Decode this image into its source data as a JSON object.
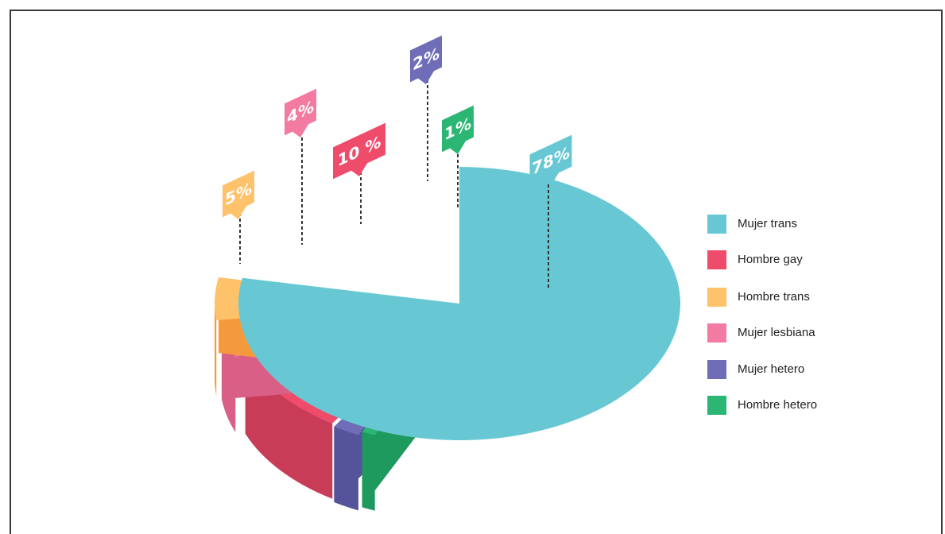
{
  "chart_data": {
    "type": "pie",
    "categories": [
      "Mujer trans",
      "Hombre gay",
      "Hombre trans",
      "Mujer lesbiana",
      "Mujer hetero",
      "Hombre hetero"
    ],
    "values": [
      78,
      10,
      5,
      4,
      2,
      1
    ],
    "data_labels": [
      "78%",
      "10 %",
      "5%",
      "4%",
      "2%",
      "1%"
    ],
    "legend": {
      "position": "right",
      "entries": [
        "Mujer trans",
        "Hombre gay",
        "Hombre trans",
        "Mujer lesbiana",
        "Mujer hetero",
        "Hombre hetero"
      ]
    },
    "colors": {
      "Mujer trans": "#67c8d3",
      "Hombre gay": "#ef4b6b",
      "Hombre trans": "#fdc26a",
      "Mujer lesbiana": "#f37aa0",
      "Mujer hetero": "#6f6db8",
      "Hombre hetero": "#2bb673"
    },
    "side_colors": {
      "Mujer trans": "#33b8b2",
      "Hombre gay": "#c83c58",
      "Hombre trans": "#f59a3c",
      "Mujer lesbiana": "#d95f86",
      "Mujer hetero": "#55539a",
      "Hombre hetero": "#1f9a5e"
    },
    "style": "3d-exploded"
  }
}
